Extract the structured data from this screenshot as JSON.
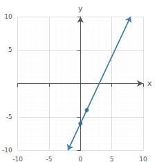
{
  "chart_data": {
    "type": "line",
    "xlabel": "x",
    "ylabel": "y",
    "xlim": [
      -10,
      10
    ],
    "ylim": [
      -10,
      10
    ],
    "xticks": [
      -10,
      -5,
      0,
      5,
      10
    ],
    "yticks": [
      -10,
      -5,
      5,
      10
    ],
    "grid": true,
    "series": [
      {
        "type": "line",
        "color": "#4a7fa5",
        "x": [
          -2,
          8
        ],
        "values": [
          -10,
          10
        ]
      },
      {
        "type": "scatter",
        "color": "#2e5f80",
        "marker": "circle",
        "x": [
          0,
          1
        ],
        "values": [
          -6,
          -4
        ]
      }
    ]
  }
}
